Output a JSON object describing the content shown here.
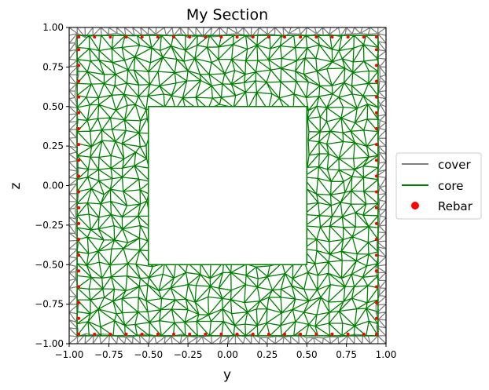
{
  "chart_data": {
    "type": "scatter",
    "title": "My Section",
    "xlabel": "y",
    "ylabel": "z",
    "xlim": [
      -1.0,
      1.0
    ],
    "ylim": [
      -1.0,
      1.0
    ],
    "xticks": [
      "−1.00",
      "−0.75",
      "−0.50",
      "−0.25",
      "0.00",
      "0.25",
      "0.50",
      "0.75",
      "1.00"
    ],
    "yticks": [
      "−1.00",
      "−0.75",
      "−0.50",
      "−0.25",
      "0.00",
      "0.25",
      "0.50",
      "0.75",
      "1.00"
    ],
    "grid": false,
    "legend_position": "outside-right",
    "series": [
      {
        "name": "cover",
        "kind": "mesh-line",
        "color": "#808080",
        "region": {
          "outer": [
            -1.0,
            1.0
          ],
          "inner": [
            -0.95,
            0.95
          ]
        }
      },
      {
        "name": "core",
        "kind": "mesh-line",
        "color": "#008000",
        "region": {
          "outer": [
            -0.95,
            0.95
          ],
          "hole": [
            -0.5,
            0.5
          ]
        }
      },
      {
        "name": "Rebar",
        "kind": "points",
        "color": "#ff0000",
        "bottom": {
          "z": -0.94,
          "y": [
            -0.94,
            -0.84,
            -0.74,
            -0.64,
            -0.54,
            -0.44,
            -0.34,
            -0.24,
            -0.14,
            -0.04,
            0.06,
            0.16,
            0.26,
            0.36,
            0.46,
            0.56,
            0.66,
            0.76,
            0.86,
            0.94
          ]
        },
        "top": {
          "z": 0.94,
          "y": [
            -0.94,
            -0.84,
            -0.74,
            -0.64,
            -0.54,
            -0.44,
            -0.34,
            -0.24,
            -0.14,
            -0.04,
            0.06,
            0.16,
            0.26,
            0.36,
            0.46,
            0.56,
            0.66,
            0.76,
            0.86,
            0.94
          ]
        },
        "left": {
          "y": -0.94,
          "z": [
            -0.84,
            -0.74,
            -0.64,
            -0.54,
            -0.44,
            -0.34,
            -0.24,
            -0.14,
            -0.04,
            0.06,
            0.16,
            0.26,
            0.36,
            0.46,
            0.56,
            0.66,
            0.76,
            0.86
          ]
        },
        "right": {
          "y": 0.94,
          "z": [
            -0.84,
            -0.74,
            -0.64,
            -0.54,
            -0.44,
            -0.34,
            -0.24,
            -0.14,
            -0.04,
            0.06,
            0.16,
            0.26,
            0.36,
            0.46,
            0.56,
            0.66,
            0.76,
            0.86
          ]
        }
      }
    ]
  }
}
